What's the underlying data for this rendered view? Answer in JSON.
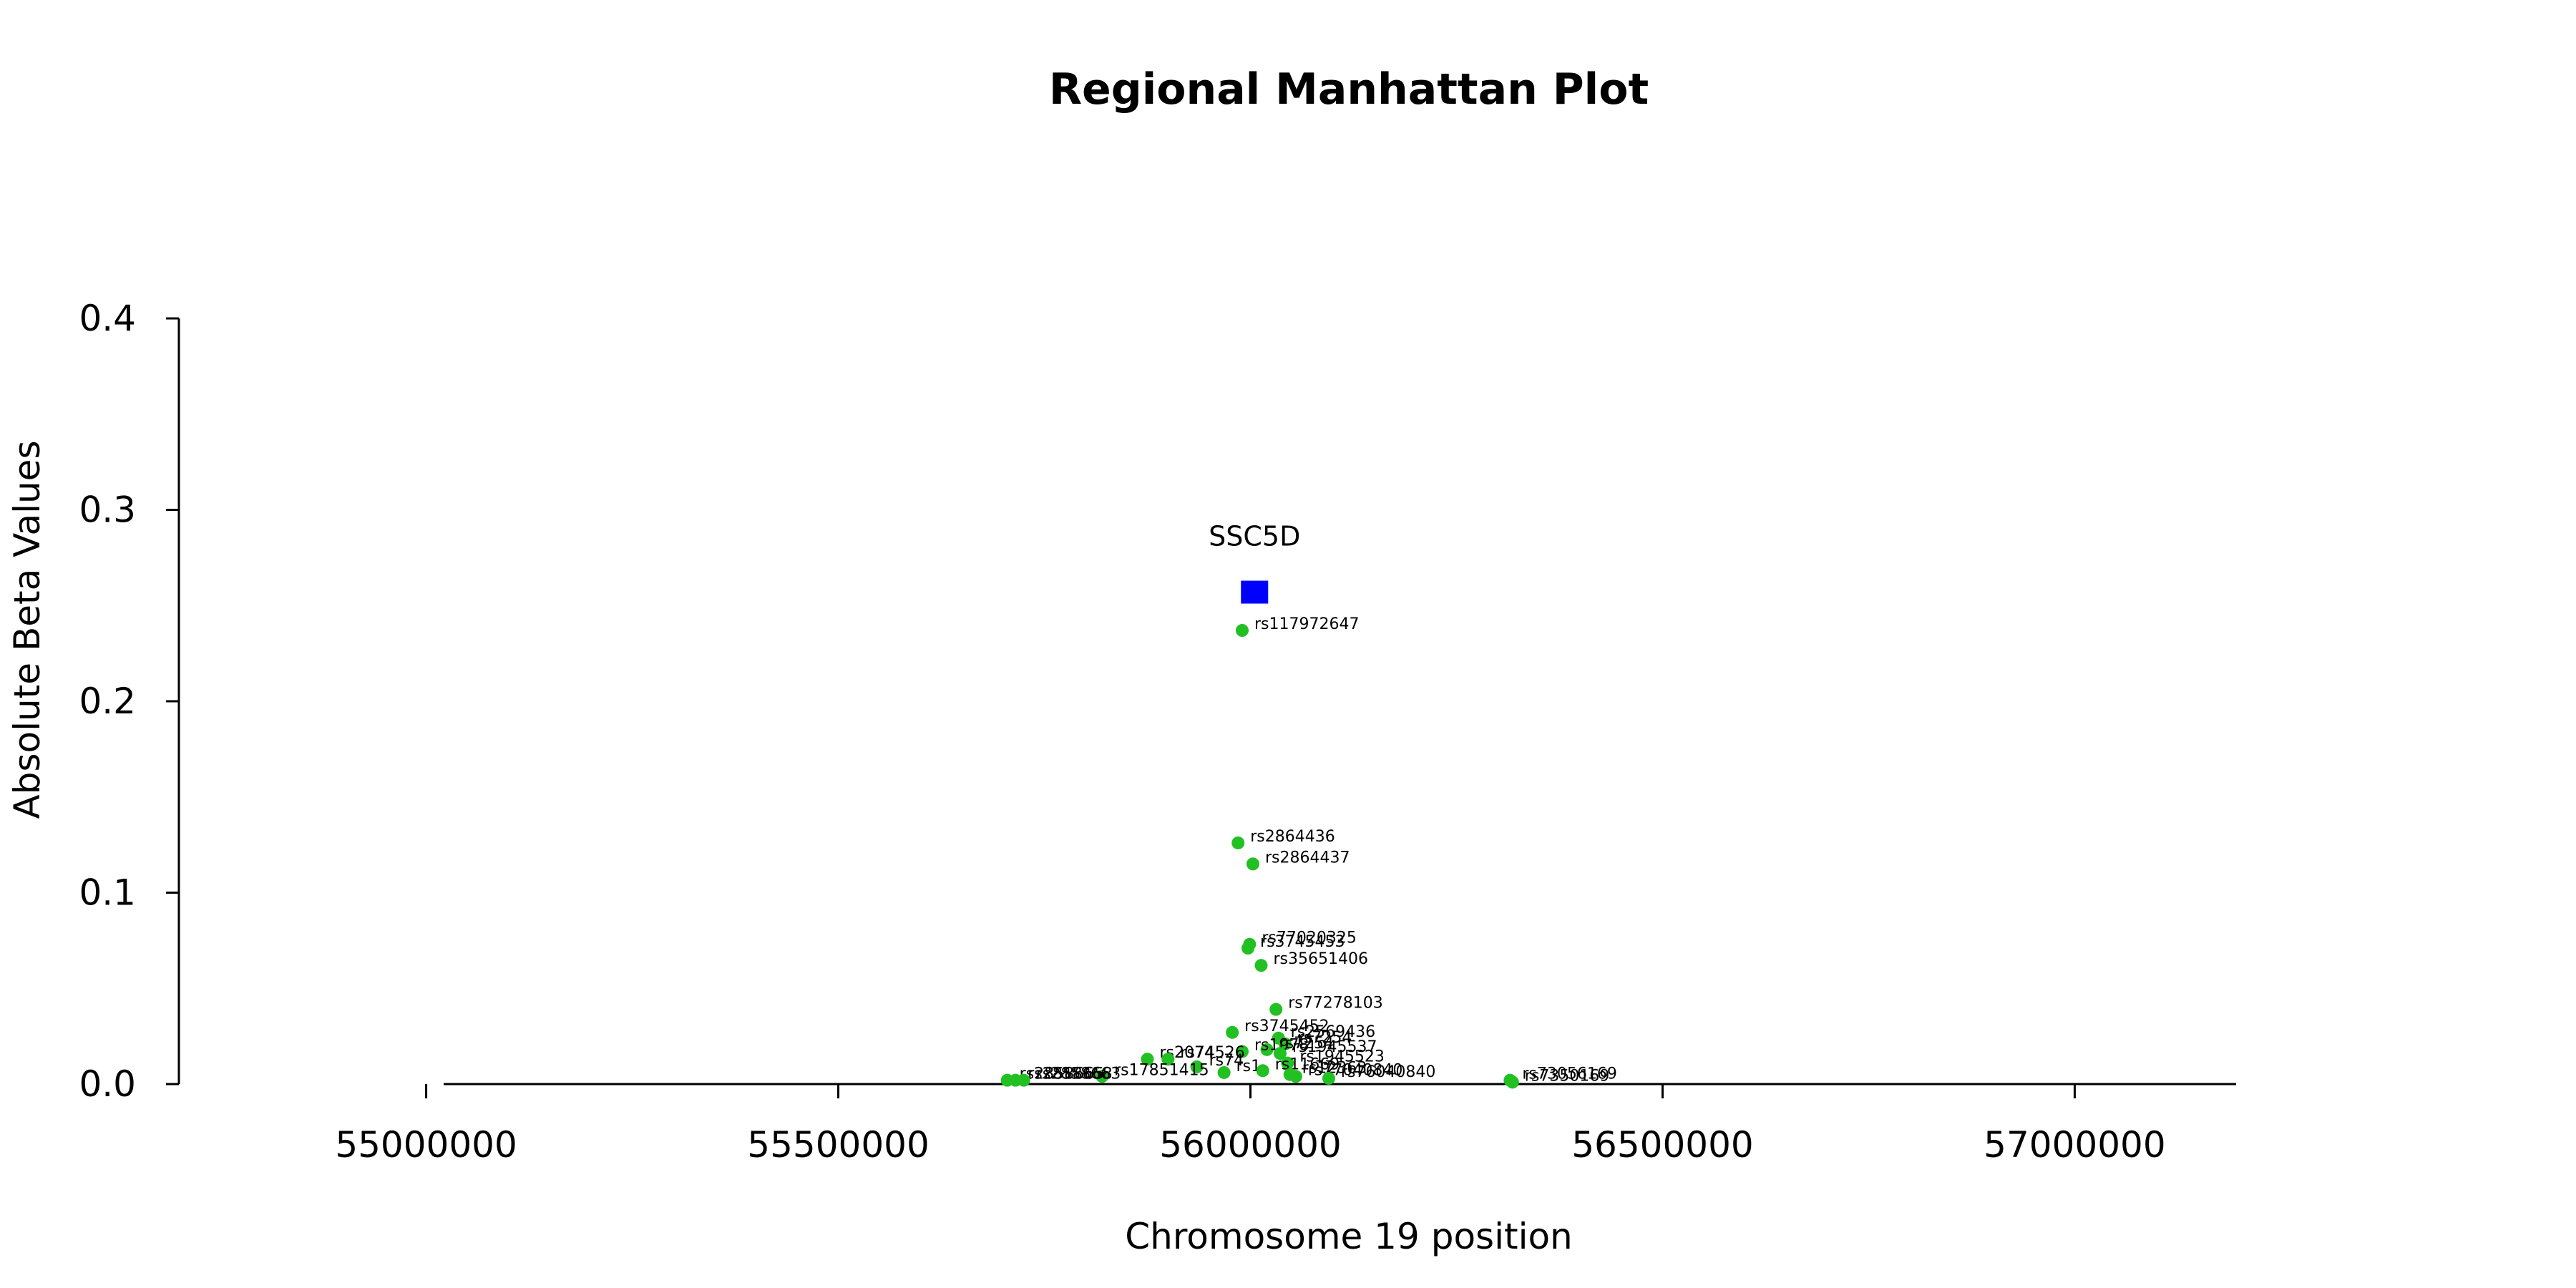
{
  "chart_data": {
    "type": "scatter",
    "title": "Regional Manhattan Plot",
    "xlabel": "Chromosome 19 position",
    "ylabel": "Absolute Beta Values",
    "xlim": [
      54700000,
      57300000
    ],
    "ylim": [
      0,
      0.4
    ],
    "x_ticks": [
      55000000,
      55500000,
      56000000,
      56500000,
      57000000
    ],
    "x_tick_labels": [
      "55000000",
      "55500000",
      "56000000",
      "56500000",
      "57000000"
    ],
    "y_ticks": [
      0.0,
      0.1,
      0.2,
      0.3,
      0.4
    ],
    "y_tick_labels": [
      "0.0",
      "0.1",
      "0.2",
      "0.3",
      "0.4"
    ],
    "grid": false,
    "colors": {
      "snp": "#22c022",
      "gene": "#0000ff"
    },
    "gene": {
      "name": "SSC5D",
      "x": 56005000,
      "y": 0.257
    },
    "points": [
      {
        "x": 55990000,
        "y": 0.237,
        "label": "rs117972647"
      },
      {
        "x": 55985000,
        "y": 0.126,
        "label": "rs2864436"
      },
      {
        "x": 56003000,
        "y": 0.115,
        "label": "rs2864437"
      },
      {
        "x": 55999000,
        "y": 0.073,
        "label": "rs77020325"
      },
      {
        "x": 55997000,
        "y": 0.071,
        "label": "rs3745453"
      },
      {
        "x": 56013000,
        "y": 0.062,
        "label": "rs35651406"
      },
      {
        "x": 56031000,
        "y": 0.039,
        "label": "rs77278103"
      },
      {
        "x": 55978000,
        "y": 0.027,
        "label": "rs3745452"
      },
      {
        "x": 56034000,
        "y": 0.024,
        "label": "rs2569436"
      },
      {
        "x": 56042000,
        "y": 0.021,
        "label": "rs7254"
      },
      {
        "x": 56020000,
        "y": 0.018,
        "label": "rs7254"
      },
      {
        "x": 55990000,
        "y": 0.017,
        "label": "rs1978"
      },
      {
        "x": 56036000,
        "y": 0.016,
        "label": "rs1945537"
      },
      {
        "x": 55875000,
        "y": 0.013,
        "label": "rs2074"
      },
      {
        "x": 55900000,
        "y": 0.013,
        "label": "rs74526"
      },
      {
        "x": 55935000,
        "y": 0.009,
        "label": "rs74"
      },
      {
        "x": 56045000,
        "y": 0.011,
        "label": "rs1945523"
      },
      {
        "x": 55968000,
        "y": 0.006,
        "label": "rs1"
      },
      {
        "x": 56015000,
        "y": 0.007,
        "label": "rs11669"
      },
      {
        "x": 56048000,
        "y": 0.005,
        "label": "rs12363"
      },
      {
        "x": 56055000,
        "y": 0.004,
        "label": "rs77040840"
      },
      {
        "x": 56095000,
        "y": 0.003,
        "label": "rs76040840"
      },
      {
        "x": 55820000,
        "y": 0.004,
        "label": "rs17851415"
      },
      {
        "x": 55705000,
        "y": 0.002,
        "label": "rs2858665"
      },
      {
        "x": 55715000,
        "y": 0.002,
        "label": "rs2858668"
      },
      {
        "x": 55725000,
        "y": 0.002,
        "label": "rs2858663"
      },
      {
        "x": 56315000,
        "y": 0.002,
        "label": "rs73056169"
      },
      {
        "x": 56318000,
        "y": 0.001,
        "label": "rs7350169"
      }
    ]
  }
}
